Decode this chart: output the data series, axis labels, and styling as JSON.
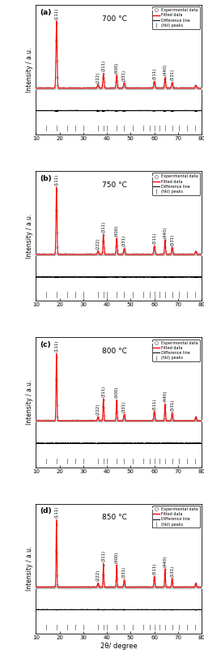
{
  "panels": [
    {
      "label": "a",
      "temp": "700 °C"
    },
    {
      "label": "b",
      "temp": "750 °C"
    },
    {
      "label": "c",
      "temp": "800 °C"
    },
    {
      "label": "d",
      "temp": "850 °C"
    }
  ],
  "peak_positions": [
    18.7,
    36.2,
    38.5,
    44.1,
    47.3,
    60.0,
    64.5,
    67.5,
    77.5
  ],
  "hkl_labels": [
    "(111)",
    "(222)",
    "(311)",
    "(400)",
    "(331)",
    "(511)",
    "(440)",
    "(531)"
  ],
  "hkl_positions": [
    18.7,
    36.2,
    38.5,
    44.1,
    47.3,
    60.0,
    64.5,
    67.5
  ],
  "tick_positions": [
    14.5,
    18.7,
    23.1,
    26.5,
    30.2,
    36.2,
    38.5,
    40.1,
    44.1,
    47.3,
    50.8,
    55.3,
    58.1,
    60.0,
    62.0,
    64.5,
    67.5,
    70.2,
    73.8,
    77.2
  ],
  "legend_exp": "Experimental data",
  "legend_fit": "Fitted data",
  "legend_diff": "Difference line",
  "legend_hkl": "(hkl) peaks",
  "xlabel": "2θ/ degree",
  "ylabel": "Intensity / a.u.",
  "xlim": [
    10,
    80
  ],
  "exp_color": "#aaaaaa",
  "fit_color": "#ff0000",
  "diff_color": "#000000",
  "tick_color": "#888888",
  "bg_color": "#ffffff",
  "peak_heights_a": [
    1.0,
    0.05,
    0.22,
    0.19,
    0.08,
    0.1,
    0.16,
    0.09,
    0.04
  ],
  "peak_widths_a": [
    0.22,
    0.28,
    0.22,
    0.22,
    0.26,
    0.26,
    0.22,
    0.24,
    0.28
  ],
  "noise_a": 0.009,
  "peak_heights_b": [
    1.0,
    0.05,
    0.3,
    0.24,
    0.09,
    0.13,
    0.22,
    0.11,
    0.05
  ],
  "peak_widths_b": [
    0.2,
    0.24,
    0.2,
    0.2,
    0.24,
    0.24,
    0.2,
    0.22,
    0.25
  ],
  "noise_b": 0.009,
  "peak_heights_c": [
    1.0,
    0.06,
    0.33,
    0.31,
    0.1,
    0.14,
    0.25,
    0.12,
    0.06
  ],
  "peak_widths_c": [
    0.18,
    0.22,
    0.18,
    0.18,
    0.22,
    0.22,
    0.18,
    0.2,
    0.22
  ],
  "noise_c": 0.008,
  "peak_heights_d": [
    1.0,
    0.06,
    0.35,
    0.33,
    0.11,
    0.16,
    0.27,
    0.13,
    0.06
  ],
  "peak_widths_d": [
    0.16,
    0.2,
    0.16,
    0.16,
    0.2,
    0.2,
    0.16,
    0.18,
    0.2
  ],
  "noise_d": 0.007
}
